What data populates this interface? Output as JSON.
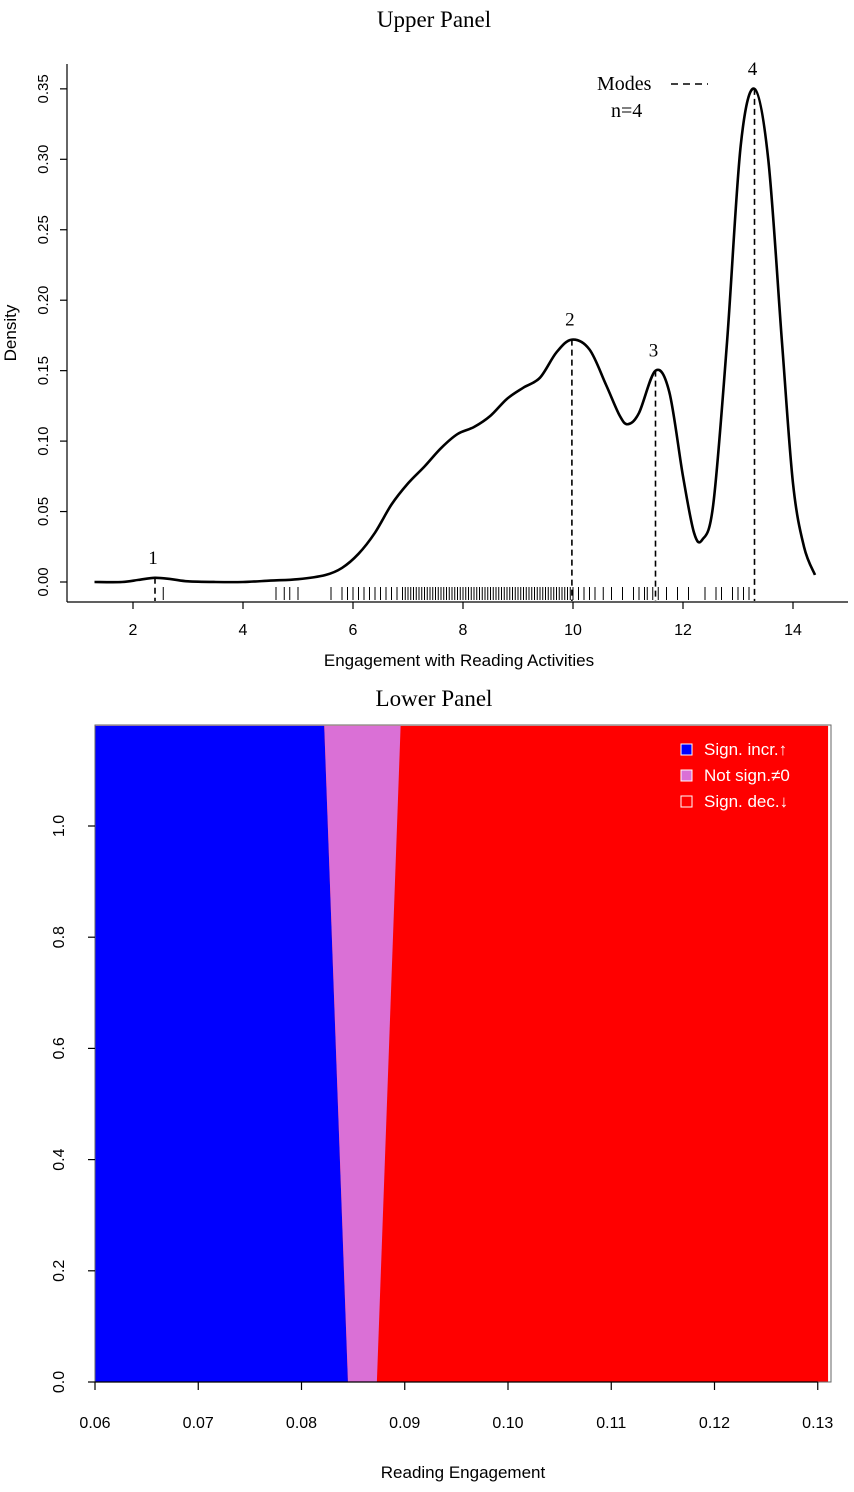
{
  "chart_data": [
    {
      "type": "line",
      "title": "Upper Panel",
      "xlabel": "Engagement with Reading Activities",
      "ylabel": "Density",
      "xlim": [
        1.3,
        14.4
      ],
      "ylim": [
        0,
        0.35
      ],
      "x_ticks": [
        "2",
        "4",
        "6",
        "8",
        "10",
        "12",
        "14"
      ],
      "y_ticks": [
        "0.00",
        "0.05",
        "0.10",
        "0.15",
        "0.20",
        "0.25",
        "0.30",
        "0.35"
      ],
      "grid": false,
      "series": [
        {
          "points": [
            [
              1.3,
              0.0
            ],
            [
              1.8,
              0.0
            ],
            [
              2.1,
              0.0015
            ],
            [
              2.4,
              0.003
            ],
            [
              2.7,
              0.002
            ],
            [
              3.0,
              0.0005
            ],
            [
              3.5,
              0.0
            ],
            [
              4.0,
              0.0
            ],
            [
              4.5,
              0.001
            ],
            [
              5.0,
              0.002
            ],
            [
              5.5,
              0.005
            ],
            [
              5.8,
              0.01
            ],
            [
              6.1,
              0.02
            ],
            [
              6.4,
              0.035
            ],
            [
              6.7,
              0.055
            ],
            [
              7.0,
              0.07
            ],
            [
              7.3,
              0.082
            ],
            [
              7.6,
              0.095
            ],
            [
              7.9,
              0.105
            ],
            [
              8.2,
              0.11
            ],
            [
              8.5,
              0.118
            ],
            [
              8.8,
              0.13
            ],
            [
              9.1,
              0.138
            ],
            [
              9.4,
              0.145
            ],
            [
              9.7,
              0.163
            ],
            [
              9.98,
              0.172
            ],
            [
              10.3,
              0.165
            ],
            [
              10.6,
              0.14
            ],
            [
              10.85,
              0.118
            ],
            [
              11.0,
              0.112
            ],
            [
              11.2,
              0.12
            ],
            [
              11.5,
              0.15
            ],
            [
              11.75,
              0.135
            ],
            [
              12.0,
              0.075
            ],
            [
              12.2,
              0.035
            ],
            [
              12.35,
              0.03
            ],
            [
              12.55,
              0.055
            ],
            [
              12.8,
              0.17
            ],
            [
              13.05,
              0.31
            ],
            [
              13.3,
              0.35
            ],
            [
              13.55,
              0.3
            ],
            [
              13.8,
              0.17
            ],
            [
              14.0,
              0.07
            ],
            [
              14.2,
              0.025
            ],
            [
              14.4,
              0.005
            ]
          ]
        }
      ],
      "modes": [
        {
          "label": "1",
          "x": 2.4,
          "y": 0.003
        },
        {
          "label": "2",
          "x": 9.98,
          "y": 0.172
        },
        {
          "label": "3",
          "x": 11.5,
          "y": 0.15
        },
        {
          "label": "4",
          "x": 13.3,
          "y": 0.35
        }
      ],
      "legend": {
        "label": "Modes",
        "note": "n=4",
        "placement": "top-right"
      },
      "rug": [
        2.55,
        4.6,
        4.75,
        4.85,
        5.0,
        5.6,
        5.8,
        5.9,
        6.0,
        6.1,
        6.2,
        6.3,
        6.4,
        6.5,
        6.6,
        6.7,
        6.8,
        6.9,
        6.95,
        7.0,
        7.05,
        7.1,
        7.15,
        7.2,
        7.25,
        7.3,
        7.35,
        7.4,
        7.45,
        7.5,
        7.55,
        7.6,
        7.65,
        7.7,
        7.75,
        7.8,
        7.85,
        7.9,
        7.95,
        8.0,
        8.05,
        8.1,
        8.15,
        8.2,
        8.25,
        8.3,
        8.35,
        8.4,
        8.45,
        8.5,
        8.55,
        8.6,
        8.65,
        8.7,
        8.75,
        8.8,
        8.85,
        8.9,
        8.95,
        9.0,
        9.05,
        9.1,
        9.15,
        9.2,
        9.25,
        9.3,
        9.35,
        9.4,
        9.45,
        9.5,
        9.55,
        9.6,
        9.65,
        9.7,
        9.75,
        9.8,
        9.85,
        9.9,
        9.95,
        10.0,
        10.1,
        10.2,
        10.3,
        10.4,
        10.55,
        10.7,
        10.9,
        11.1,
        11.2,
        11.3,
        11.35,
        11.45,
        11.55,
        11.7,
        11.9,
        12.1,
        12.4,
        12.6,
        12.7,
        12.9,
        13.0,
        13.1,
        13.2
      ]
    },
    {
      "type": "area",
      "title": "Lower Panel",
      "xlabel": "Reading Engagement",
      "ylabel": "",
      "xlim": [
        0.06,
        0.131
      ],
      "ylim": [
        0,
        1.18
      ],
      "x_ticks": [
        "0.06",
        "0.07",
        "0.08",
        "0.09",
        "0.10",
        "0.11",
        "0.12",
        "0.13"
      ],
      "y_ticks": [
        "0.0",
        "0.2",
        "0.4",
        "0.6",
        "0.8",
        "1.0"
      ],
      "grid": false,
      "regions": [
        {
          "name": "Sign. incr.↑",
          "color": "#0000ff"
        },
        {
          "name": "Not sign.≠0",
          "color": "#da70d6"
        },
        {
          "name": "Sign. dec.↓",
          "color": "#ff0000"
        }
      ],
      "boundaries": {
        "lower_bound": [
          [
            0.0,
            0.0845
          ],
          [
            1.18,
            0.0822
          ]
        ],
        "upper_bound": [
          [
            0.0,
            0.0873
          ],
          [
            1.18,
            0.0896
          ]
        ]
      },
      "legend": {
        "placement": "top-right"
      }
    }
  ]
}
